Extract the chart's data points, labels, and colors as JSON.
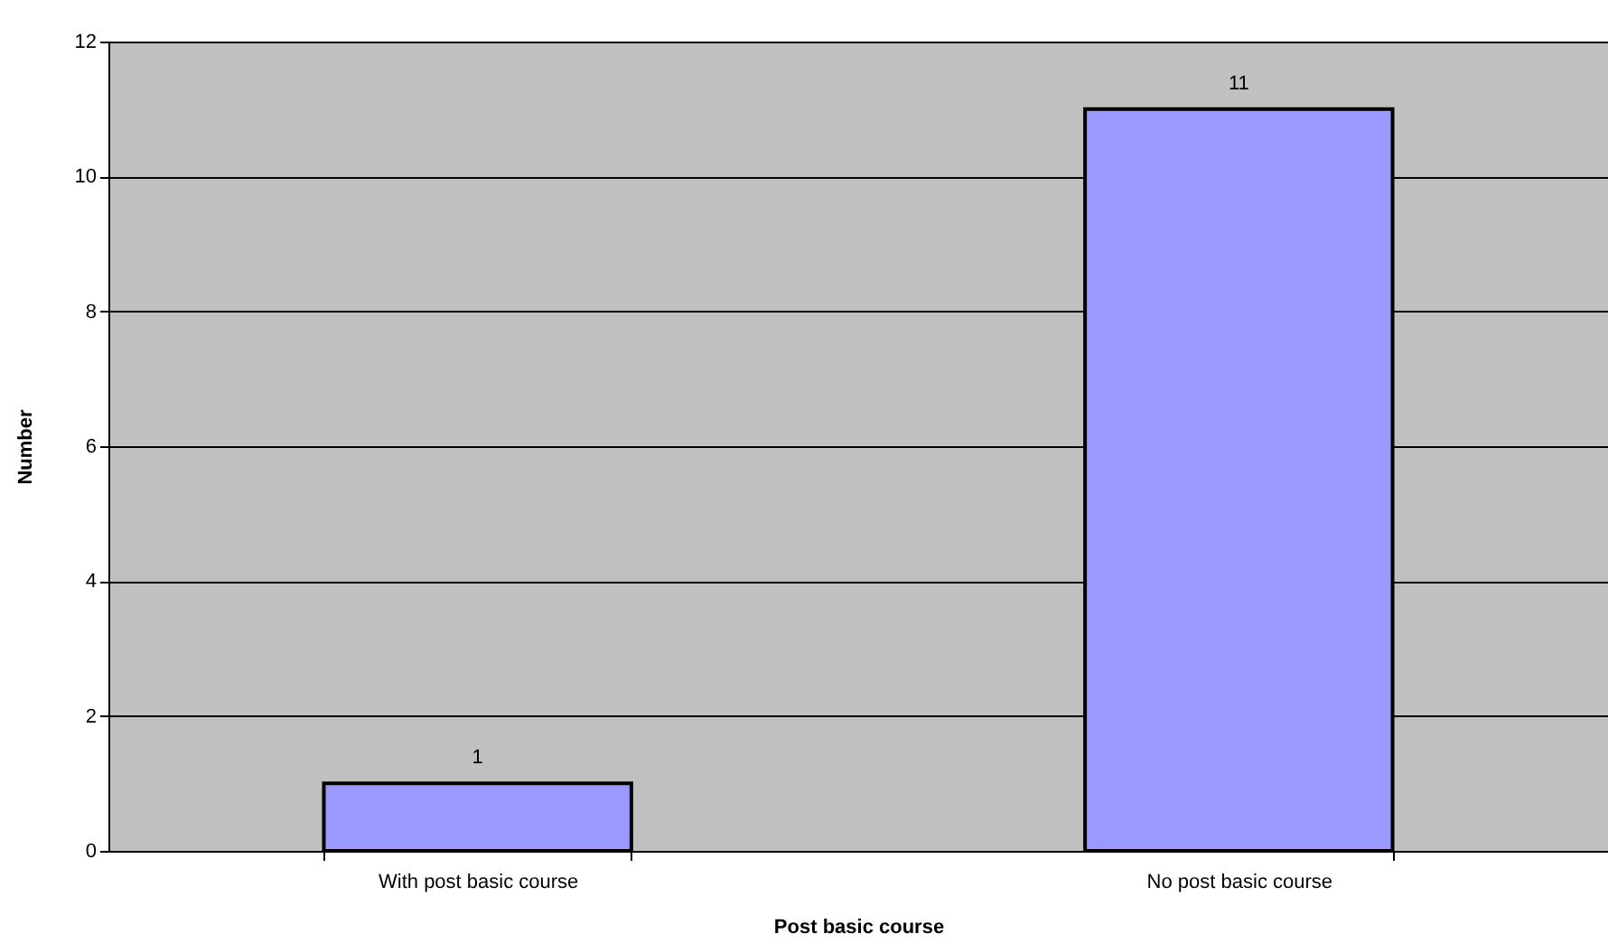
{
  "chart_data": {
    "type": "bar",
    "xlabel": "Post basic course",
    "ylabel": "Number",
    "categories": [
      "With post basic course",
      "No post basic course"
    ],
    "values": [
      1,
      11
    ],
    "color": "#9999ff",
    "ylim": [
      0,
      12
    ],
    "yticks": [
      0,
      2,
      4,
      6,
      8,
      10,
      12
    ],
    "grid": "y",
    "data_labels": true
  }
}
